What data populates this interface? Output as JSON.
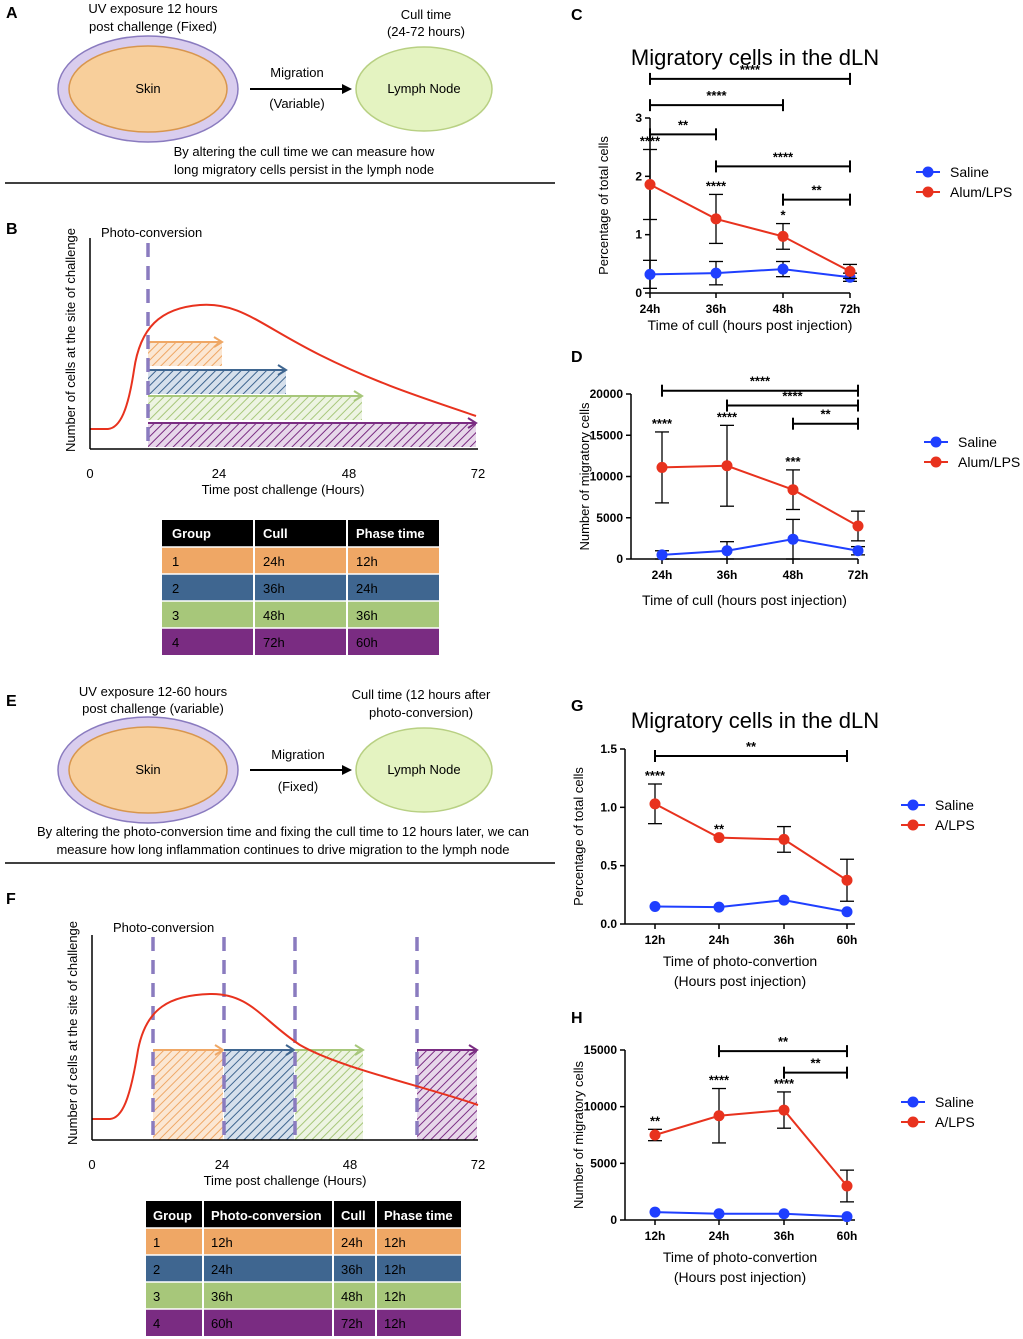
{
  "colors": {
    "saline": "#1f3fff",
    "alum": "#e8321e",
    "dash": "#8a7bbf",
    "orange": "#efa765",
    "blue": "#3f6690",
    "green": "#a7c77a",
    "purple": "#7a2c82",
    "skin_fill": "#f8cf9b",
    "skin_ring": "#d9cdee",
    "ln_fill": "#e4f3c1"
  },
  "panels": {
    "A": {
      "letter": "A",
      "uv_line1": "UV exposure 12 hours",
      "uv_line2": "post challenge (Fixed)",
      "skin": "Skin",
      "migration": "Migration",
      "migration_sub": "(Variable)",
      "cull_line1": "Cull time",
      "cull_line2": "(24-72 hours)",
      "lymph": "Lymph Node",
      "caption1": "By altering the cull time we can measure how",
      "caption2": "long migratory cells persist in the lymph node"
    },
    "B": {
      "letter": "B",
      "photo": "Photo-conversion",
      "ylabel": "Number of cells at the site of challenge",
      "xlabel": "Time post challenge (Hours)",
      "ticks": [
        "0",
        "24",
        "48",
        "72"
      ],
      "table": {
        "headers": [
          "Group",
          "Cull",
          "Phase time"
        ],
        "rows": [
          [
            "1",
            "24h",
            "12h"
          ],
          [
            "2",
            "36h",
            "24h"
          ],
          [
            "3",
            "48h",
            "36h"
          ],
          [
            "4",
            "72h",
            "60h"
          ]
        ]
      }
    },
    "E": {
      "letter": "E",
      "uv_line1": "UV exposure 12-60 hours",
      "uv_line2": "post challenge (variable)",
      "skin": "Skin",
      "migration": "Migration",
      "migration_sub": "(Fixed)",
      "cull_line1": "Cull time (12 hours after",
      "cull_line2": "photo-conversion)",
      "lymph": "Lymph Node",
      "caption1": "By altering the photo-conversion time and fixing the cull time to 12 hours later, we can",
      "caption2": "measure how long inflammation continues to drive migration to the lymph node"
    },
    "F": {
      "letter": "F",
      "photo": "Photo-conversion",
      "ylabel": "Number of cells at the site of challenge",
      "xlabel": "Time post challenge (Hours)",
      "ticks": [
        "0",
        "24",
        "48",
        "72"
      ],
      "table": {
        "headers": [
          "Group",
          "Photo-conversion",
          "Cull",
          "Phase time"
        ],
        "rows": [
          [
            "1",
            "12h",
            "24h",
            "12h"
          ],
          [
            "2",
            "24h",
            "36h",
            "12h"
          ],
          [
            "3",
            "36h",
            "48h",
            "12h"
          ],
          [
            "4",
            "60h",
            "72h",
            "12h"
          ]
        ]
      }
    }
  },
  "chart_data": [
    {
      "id": "C",
      "letter": "C",
      "type": "line",
      "title": "Migratory cells in the dLN",
      "categories": [
        "24h",
        "36h",
        "48h",
        "72h"
      ],
      "xlabel": "Time of cull (hours post injection)",
      "ylabel": "Percentage of total cells",
      "ylim": [
        0,
        3
      ],
      "yticks": [
        "0",
        "1",
        "2",
        "3"
      ],
      "series": [
        {
          "name": "Saline",
          "values": [
            0.32,
            0.34,
            0.41,
            0.27
          ],
          "err": [
            0.24,
            0.2,
            0.13,
            0.07
          ]
        },
        {
          "name": "Alum/LPS",
          "values": [
            1.86,
            1.27,
            0.97,
            0.37
          ],
          "err": [
            0.6,
            0.42,
            0.22,
            0.12
          ]
        }
      ],
      "point_labels": [
        "****",
        "****",
        "*",
        ""
      ],
      "brackets": [
        {
          "from": 0,
          "to": 1,
          "level": 2.72,
          "label": "**"
        },
        {
          "from": 0,
          "to": 2,
          "level": 3.22,
          "label": "****"
        },
        {
          "from": 0,
          "to": 3,
          "level": 3.67,
          "label": "****"
        },
        {
          "from": 1,
          "to": 3,
          "level": 2.17,
          "label": "****"
        },
        {
          "from": 2,
          "to": 3,
          "level": 1.6,
          "label": "**"
        }
      ],
      "legend": "right"
    },
    {
      "id": "D",
      "letter": "D",
      "type": "line",
      "title": "",
      "categories": [
        "24h",
        "36h",
        "48h",
        "72h"
      ],
      "xlabel": "Time of cull (hours post injection)",
      "ylabel": "Number of migratory cells",
      "ylim": [
        0,
        20000
      ],
      "yticks": [
        "0",
        "5000",
        "10000",
        "15000",
        "20000"
      ],
      "series": [
        {
          "name": "Saline",
          "values": [
            500,
            1000,
            2400,
            1000
          ],
          "err": [
            500,
            1100,
            2400,
            500
          ]
        },
        {
          "name": "Alum/LPS",
          "values": [
            11100,
            11300,
            8400,
            4000
          ],
          "err": [
            4300,
            4900,
            2400,
            1800
          ]
        }
      ],
      "point_labels": [
        "****",
        "****",
        "***",
        ""
      ],
      "brackets": [
        {
          "from": 0,
          "to": 3,
          "level": 20400,
          "label": "****"
        },
        {
          "from": 1,
          "to": 3,
          "level": 18600,
          "label": "****"
        },
        {
          "from": 2,
          "to": 3,
          "level": 16400,
          "label": "**"
        }
      ],
      "legend": "right"
    },
    {
      "id": "G",
      "letter": "G",
      "type": "line",
      "title": "Migratory cells in the dLN",
      "categories": [
        "12h",
        "24h",
        "36h",
        "60h"
      ],
      "xlabel": "Time of photo-convertion",
      "xlabel2": "(Hours post injection)",
      "ylabel": "Percentage of total cells",
      "ylim": [
        0,
        1.5
      ],
      "yticks": [
        "0.0",
        "0.5",
        "1.0",
        "1.5"
      ],
      "series": [
        {
          "name": "Saline",
          "values": [
            0.15,
            0.145,
            0.205,
            0.105
          ],
          "err": [
            0,
            0,
            0,
            0
          ]
        },
        {
          "name": "A/LPS",
          "values": [
            1.03,
            0.74,
            0.725,
            0.375
          ],
          "err": [
            0.17,
            0,
            0.11,
            0.18
          ]
        }
      ],
      "point_labels": [
        "****",
        "**",
        "",
        ""
      ],
      "brackets": [
        {
          "from": 0,
          "to": 3,
          "level": 1.44,
          "label": "**"
        }
      ],
      "legend": "right"
    },
    {
      "id": "H",
      "letter": "H",
      "type": "line",
      "title": "",
      "categories": [
        "12h",
        "24h",
        "36h",
        "60h"
      ],
      "xlabel": "Time of photo-convertion",
      "xlabel2": "(Hours post injection)",
      "ylabel": "Number of migratory cells",
      "ylim": [
        0,
        15000
      ],
      "yticks": [
        "0",
        "5000",
        "10000",
        "15000"
      ],
      "series": [
        {
          "name": "Saline",
          "values": [
            700,
            550,
            550,
            300
          ],
          "err": [
            0,
            0,
            0,
            0
          ]
        },
        {
          "name": "A/LPS",
          "values": [
            7500,
            9200,
            9700,
            3000
          ],
          "err": [
            500,
            2400,
            1600,
            1400
          ]
        }
      ],
      "point_labels": [
        "**",
        "****",
        "****",
        ""
      ],
      "brackets": [
        {
          "from": 1,
          "to": 3,
          "level": 14900,
          "label": "**"
        },
        {
          "from": 2,
          "to": 3,
          "level": 13000,
          "label": "**"
        }
      ],
      "legend": "right"
    }
  ]
}
